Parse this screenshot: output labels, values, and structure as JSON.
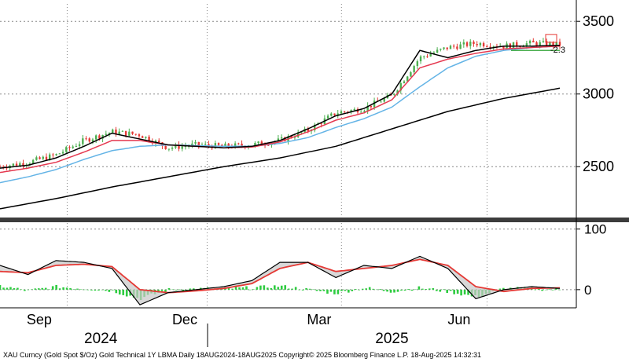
{
  "chart_data": {
    "type": "line",
    "price_panel": {
      "yticks": [
        "3500",
        "3000",
        "2500"
      ],
      "ytick_values": [
        3500,
        3000,
        2500
      ],
      "ylim": [
        2150,
        3620
      ],
      "annotation": "-2.3",
      "colors": {
        "candle_up": "#4caf50",
        "candle_down": "#e53935",
        "ma_short": "#000000",
        "ma_mid": "#e53950",
        "ma_long": "#64b4e6",
        "ma_200": "#000000"
      },
      "series": [
        {
          "key": "close",
          "t": [
            0,
            0.05,
            0.1,
            0.15,
            0.2,
            0.25,
            0.3,
            0.35,
            0.4,
            0.45,
            0.5,
            0.55,
            0.6,
            0.65,
            0.7,
            0.75,
            0.8,
            0.85,
            0.9,
            0.95,
            1
          ],
          "values": [
            2500,
            2530,
            2580,
            2680,
            2740,
            2720,
            2630,
            2650,
            2640,
            2650,
            2680,
            2750,
            2870,
            2900,
            2990,
            3250,
            3320,
            3350,
            3330,
            3350,
            3340
          ]
        },
        {
          "key": "ma_short",
          "t": [
            0,
            0.05,
            0.1,
            0.15,
            0.2,
            0.25,
            0.3,
            0.35,
            0.4,
            0.45,
            0.5,
            0.55,
            0.6,
            0.65,
            0.7,
            0.75,
            0.8,
            0.85,
            0.9,
            0.95,
            1
          ],
          "values": [
            2490,
            2510,
            2560,
            2640,
            2730,
            2690,
            2650,
            2640,
            2630,
            2640,
            2680,
            2760,
            2850,
            2900,
            3000,
            3300,
            3250,
            3300,
            3330,
            3330,
            3335
          ]
        },
        {
          "key": "ma_mid",
          "t": [
            0,
            0.05,
            0.1,
            0.15,
            0.2,
            0.25,
            0.3,
            0.35,
            0.4,
            0.45,
            0.5,
            0.55,
            0.6,
            0.65,
            0.7,
            0.75,
            0.8,
            0.85,
            0.9,
            0.95,
            1
          ],
          "values": [
            2460,
            2490,
            2530,
            2600,
            2680,
            2680,
            2650,
            2640,
            2630,
            2635,
            2670,
            2740,
            2820,
            2870,
            2960,
            3180,
            3240,
            3280,
            3310,
            3320,
            3330
          ]
        },
        {
          "key": "ma_long",
          "t": [
            0,
            0.05,
            0.1,
            0.15,
            0.2,
            0.25,
            0.3,
            0.35,
            0.4,
            0.45,
            0.5,
            0.55,
            0.6,
            0.65,
            0.7,
            0.75,
            0.8,
            0.85,
            0.9,
            0.95,
            1
          ],
          "values": [
            2390,
            2430,
            2480,
            2550,
            2610,
            2640,
            2650,
            2645,
            2640,
            2640,
            2660,
            2700,
            2770,
            2830,
            2910,
            3050,
            3180,
            3260,
            3300,
            3320,
            3330
          ]
        },
        {
          "key": "ma_200",
          "t": [
            0,
            0.1,
            0.2,
            0.3,
            0.4,
            0.5,
            0.6,
            0.7,
            0.8,
            0.9,
            1
          ],
          "values": [
            2210,
            2280,
            2360,
            2430,
            2500,
            2560,
            2640,
            2760,
            2880,
            2970,
            3040
          ]
        }
      ]
    },
    "osc_panel": {
      "yticks": [
        "100",
        "0"
      ],
      "ytick_values": [
        100,
        0
      ],
      "ylim": [
        -30,
        110
      ],
      "series": [
        {
          "key": "osc",
          "t": [
            0,
            0.05,
            0.1,
            0.15,
            0.2,
            0.25,
            0.3,
            0.35,
            0.4,
            0.45,
            0.5,
            0.55,
            0.6,
            0.65,
            0.7,
            0.75,
            0.8,
            0.85,
            0.9,
            0.95,
            1
          ],
          "values": [
            40,
            25,
            48,
            45,
            35,
            -25,
            -5,
            0,
            5,
            15,
            45,
            45,
            20,
            40,
            35,
            55,
            35,
            -15,
            0,
            5,
            2
          ]
        },
        {
          "key": "signal",
          "t": [
            0,
            0.05,
            0.1,
            0.15,
            0.2,
            0.25,
            0.3,
            0.35,
            0.4,
            0.45,
            0.5,
            0.55,
            0.6,
            0.65,
            0.7,
            0.75,
            0.8,
            0.85,
            0.9,
            0.95,
            1
          ],
          "values": [
            30,
            28,
            40,
            42,
            38,
            0,
            -5,
            -2,
            2,
            10,
            35,
            45,
            30,
            35,
            40,
            50,
            40,
            5,
            -3,
            2,
            3
          ]
        }
      ],
      "histogram_colors": {
        "bar": "#2ecc40"
      }
    },
    "x_axis": {
      "month_labels": [
        {
          "label": "Sep",
          "t": 0.07
        },
        {
          "label": "Dec",
          "t": 0.33
        },
        {
          "label": "Mar",
          "t": 0.57
        },
        {
          "label": "Jun",
          "t": 0.82
        }
      ],
      "year_labels": [
        {
          "label": "2024",
          "t": 0.18
        },
        {
          "label": "2025",
          "t": 0.7
        }
      ],
      "vertical_grid_t": [
        0.12,
        0.37,
        0.61,
        0.87
      ]
    }
  },
  "footer": "XAU Curncy (Gold Spot  $/Oz) Gold Technical 1Y LBMA  Daily 18AUG2024-18AUG2025  Copyright© 2025 Bloomberg Finance L.P.  18-Aug-2025 14:32:31"
}
